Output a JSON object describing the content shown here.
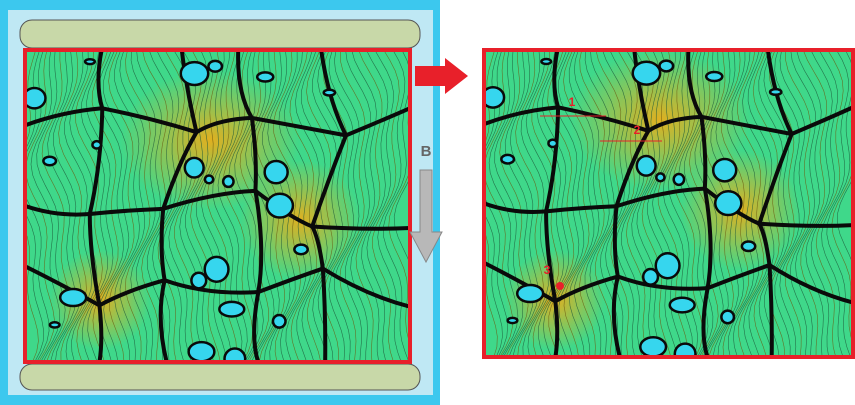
{
  "labels": {
    "field": "B",
    "point_1": "1",
    "point_2": "2",
    "point_3": "3"
  }
}
